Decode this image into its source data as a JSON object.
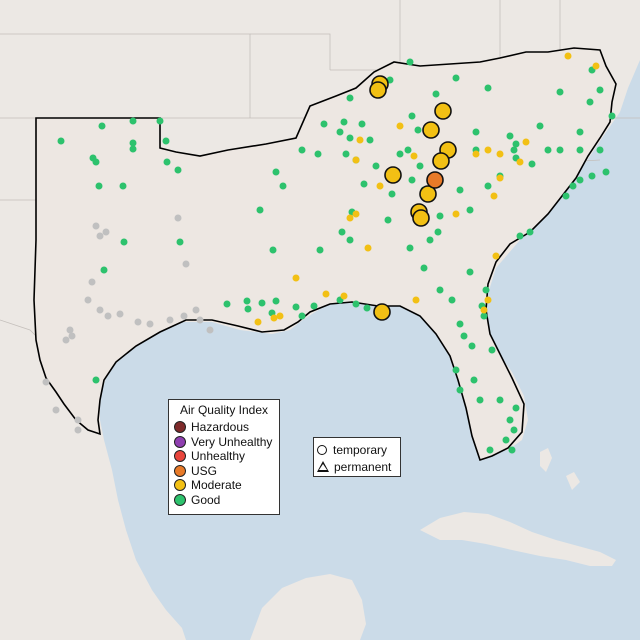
{
  "colors": {
    "ocean": "#cbdbe8",
    "land": "#ece8e4",
    "border": "#c4bfbb",
    "region_fill": "#ede7e2",
    "region_outline": "#000000"
  },
  "legend": {
    "title": "Air Quality Index",
    "categories": [
      {
        "label": "Hazardous",
        "color": "#7e2a2a"
      },
      {
        "label": "Very Unhealthy",
        "color": "#8f3fb0"
      },
      {
        "label": "Unhealthy",
        "color": "#e8453c"
      },
      {
        "label": "USG",
        "color": "#e87a28"
      },
      {
        "label": "Moderate",
        "color": "#f2c014"
      },
      {
        "label": "Good",
        "color": "#2dc26d"
      }
    ],
    "no_data_color": "#c0c0c0"
  },
  "monitor_legend": {
    "items": [
      {
        "label": "temporary",
        "shape": "circle"
      },
      {
        "label": "permanent",
        "shape": "triangle"
      }
    ]
  }
}
